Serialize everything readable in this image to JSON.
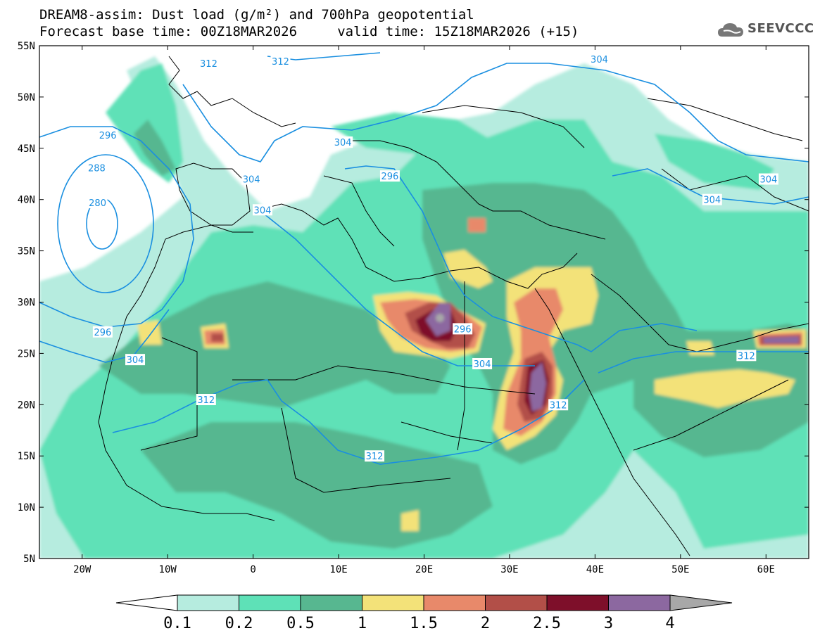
{
  "title": {
    "line1": "DREAM8-assim: Dust load (g/m²) and 700hPa geopotential",
    "line2": "Forecast base time: 00Z18MAR2026     valid time: 15Z18MAR2026 (+15)"
  },
  "logo": {
    "text": "SEEVCCC",
    "icon": "cloud-icon"
  },
  "axes": {
    "lat_labels": [
      "55N",
      "50N",
      "45N",
      "40N",
      "35N",
      "30N",
      "25N",
      "20N",
      "15N",
      "10N",
      "5N"
    ],
    "lon_labels": [
      "20W",
      "10W",
      "0",
      "10E",
      "20E",
      "30E",
      "40E",
      "50E",
      "60E"
    ]
  },
  "geopotential_labels": [
    {
      "text": "312",
      "lon": -5.2,
      "lat": 53.3
    },
    {
      "text": "312",
      "lon": 3.2,
      "lat": 53.5
    },
    {
      "text": "304",
      "lon": 40.5,
      "lat": 53.7
    },
    {
      "text": "296",
      "lon": -17,
      "lat": 46.3
    },
    {
      "text": "304",
      "lon": 10.5,
      "lat": 45.6
    },
    {
      "text": "288",
      "lon": -18.3,
      "lat": 43.1
    },
    {
      "text": "296",
      "lon": 16,
      "lat": 42.3
    },
    {
      "text": "304",
      "lon": -0.2,
      "lat": 42.0
    },
    {
      "text": "304",
      "lon": 60.3,
      "lat": 42.0
    },
    {
      "text": "280",
      "lon": -18.2,
      "lat": 39.7
    },
    {
      "text": "304",
      "lon": 1.1,
      "lat": 39.0
    },
    {
      "text": "304",
      "lon": 53.7,
      "lat": 40.0
    },
    {
      "text": "296",
      "lon": -17.6,
      "lat": 27.1
    },
    {
      "text": "296",
      "lon": 24.5,
      "lat": 27.4
    },
    {
      "text": "304",
      "lon": -13.8,
      "lat": 24.4
    },
    {
      "text": "304",
      "lon": 26.8,
      "lat": 24.0
    },
    {
      "text": "312",
      "lon": 57.7,
      "lat": 24.8
    },
    {
      "text": "312",
      "lon": -5.5,
      "lat": 20.5
    },
    {
      "text": "312",
      "lon": 35.7,
      "lat": 20.0
    },
    {
      "text": "312",
      "lon": 14.2,
      "lat": 15.0
    }
  ],
  "colorbar": {
    "labels": [
      "0.1",
      "0.2",
      "0.5",
      "1",
      "1.5",
      "2",
      "2.5",
      "3",
      "4"
    ],
    "colors": [
      "#ffffff",
      "#b6ecdf",
      "#5ee1b7",
      "#57b790",
      "#f3e279",
      "#e8896a",
      "#b24f48",
      "#7e0f2a",
      "#8c68a0",
      "#a8a8a8"
    ]
  },
  "colors": {
    "contour": "#1a8fe0",
    "border": "#000000"
  }
}
